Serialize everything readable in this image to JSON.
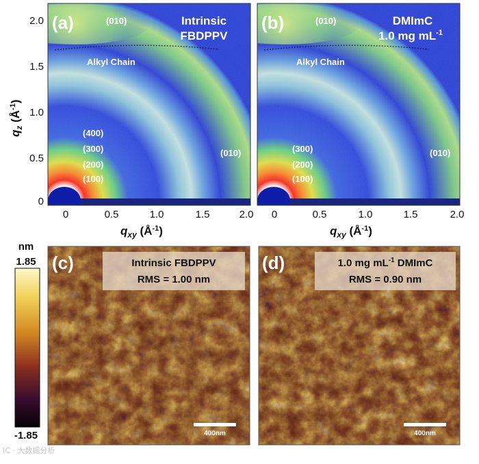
{
  "colors": {
    "giwaxs_background": "#2a3fd0",
    "giwaxs_ring": "#9fd0d8",
    "giwaxs_hot": "#e33a1c",
    "afm_dark": "#1c0710",
    "afm_mid": "#b0561a",
    "afm_bright": "#f7ec8a",
    "label_box": "#e6d7c8"
  },
  "giwaxs_panels": [
    {
      "panel_label": "(a)",
      "title_lines": [
        "Intrinsic",
        "FBDPPV"
      ],
      "title_sup": "",
      "peaks": {
        "top_010": "(010)",
        "alkyl": "Alkyl Chain",
        "side_010": "(010)",
        "series": [
          "(400)",
          "(300)",
          "(200)",
          "(100)"
        ]
      },
      "x_ticks": [
        "0",
        "0.5",
        "1.0",
        "1.5",
        "2.0"
      ]
    },
    {
      "panel_label": "(b)",
      "title_lines": [
        "DMImC",
        "1.0 mg mL"
      ],
      "title_sup": "-1",
      "peaks": {
        "top_010": "(010)",
        "alkyl": "Alkyl Chain",
        "side_010": "(010)",
        "series": [
          "(300)",
          "(200)",
          "(100)"
        ]
      },
      "x_ticks": [
        "0",
        "0.5",
        "1.0",
        "1.5",
        "2.0"
      ]
    }
  ],
  "axes": {
    "y_label_main": "q",
    "y_label_sub": "z",
    "unit_open": " (Å",
    "unit_sup": "-1",
    "unit_close": ")",
    "y_ticks": [
      "2.0",
      "1.5",
      "1.0",
      "0.5",
      "0"
    ],
    "x_label_main": "q",
    "x_label_sub": "xy",
    "x_range": [
      -0.2,
      2.0
    ],
    "y_range": [
      -0.05,
      2.1
    ]
  },
  "afm_panels": [
    {
      "panel_label": "(c)",
      "line1_pre": "Intrinsic FBDPPV",
      "line1_sup": "",
      "line1_post": "",
      "rms": "RMS = 1.00 nm",
      "scale_bar": "400nm"
    },
    {
      "panel_label": "(d)",
      "line1_pre": "1.0 mg mL",
      "line1_sup": "-1",
      "line1_post": " DMImC",
      "rms": "RMS = 0.90 nm",
      "scale_bar": "400nm"
    }
  ],
  "colorbar": {
    "unit": "nm",
    "max_label": "1.85",
    "min_label": "-1.85",
    "max": 1.85,
    "min": -1.85
  },
  "watermark": "IC · 大数据分析"
}
